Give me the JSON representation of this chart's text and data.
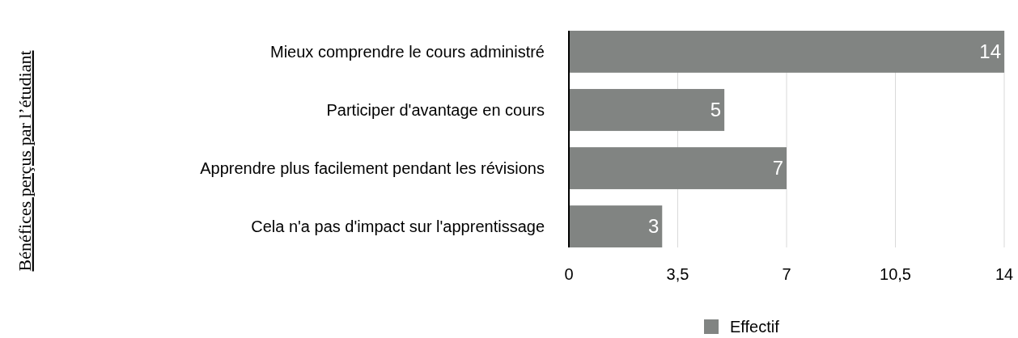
{
  "chart_data": {
    "type": "bar",
    "orientation": "horizontal",
    "annotations": [
      "Bénéfices perçus par l’étudiant"
    ],
    "categories": [
      "Mieux comprendre le cours administré",
      "Participer d'avantage en cours",
      "Apprendre plus facilement pendant les révisions ",
      "Cela n'a pas d'impact sur l'apprentissage"
    ],
    "series": [
      {
        "name": "Effectif",
        "color": "#818482",
        "values": [
          14,
          5,
          7,
          3
        ]
      }
    ],
    "xlim": [
      0,
      14
    ],
    "xticks": [
      0,
      {
        "value": 3.5,
        "label": "3,5"
      },
      7,
      {
        "value": 10.5,
        "label": "10,5"
      },
      14
    ],
    "grid": "x",
    "legend": "bottom",
    "data_labels": true
  }
}
